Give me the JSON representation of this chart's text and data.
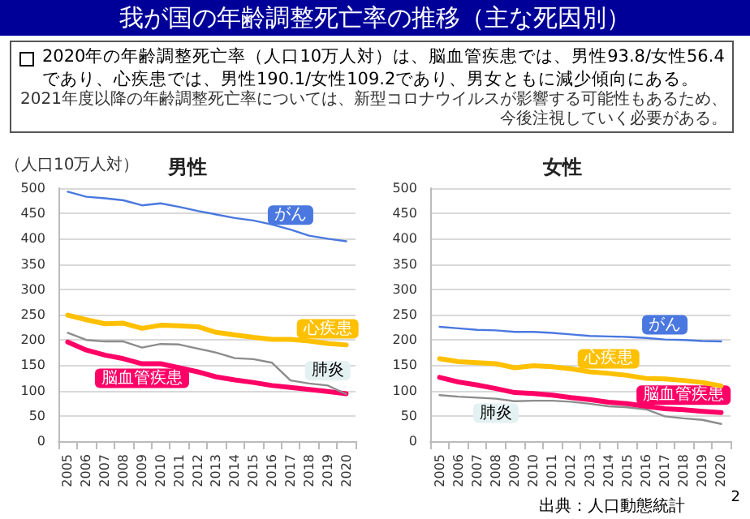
{
  "chart_data": [
    {
      "type": "line",
      "title": "男性",
      "ylabel": "（人口10万人対）",
      "categories": [
        "2005",
        "2006",
        "2007",
        "2008",
        "2009",
        "2010",
        "2011",
        "2012",
        "2013",
        "2014",
        "2015",
        "2016",
        "2017",
        "2018",
        "2019",
        "2020"
      ],
      "series": [
        {
          "name": "がん",
          "color": "#4a78e0",
          "values": [
            493,
            483,
            480,
            476,
            466,
            470,
            463,
            455,
            448,
            441,
            436,
            428,
            418,
            406,
            400,
            395
          ]
        },
        {
          "name": "心疾患",
          "color": "#ffc000",
          "values": [
            249,
            240,
            232,
            233,
            223,
            229,
            228,
            226,
            215,
            210,
            205,
            201,
            201,
            198,
            193,
            190.1
          ]
        },
        {
          "name": "肺炎",
          "color": "#8c8c8c",
          "values": [
            214,
            200,
            197,
            197,
            185,
            192,
            191,
            183,
            175,
            164,
            162,
            155,
            120,
            114,
            110,
            93
          ]
        },
        {
          "name": "脳血管疾患",
          "color": "#ff0066",
          "values": [
            196,
            180,
            170,
            163,
            153,
            153,
            145,
            137,
            127,
            121,
            116,
            110,
            106,
            102,
            98,
            93.8
          ]
        }
      ],
      "ylim": [
        0,
        500
      ],
      "yticks": [
        0,
        50,
        100,
        150,
        200,
        250,
        300,
        350,
        400,
        450,
        500
      ],
      "grid": "y",
      "marker": "none",
      "annotations": [
        "我が国の年齢調整死亡率の推移（主な死因別）",
        "2020年の年齢調整死亡率（人口10万人対）は、脳血管疾患では、男性93.8/女性56.4であり、心疾患では、男性190.1/女性109.2であり、男女ともに減少傾向にある。",
        "2021年度以降の年齢調整死亡率については、新型コロナウイルスが影響する可能性もあるため、今後注視していく必要がある。"
      ]
    },
    {
      "type": "line",
      "title": "女性",
      "categories": [
        "2005",
        "2006",
        "2007",
        "2008",
        "2009",
        "2010",
        "2011",
        "2012",
        "2013",
        "2014",
        "2015",
        "2016",
        "2017",
        "2018",
        "2019",
        "2020"
      ],
      "series": [
        {
          "name": "がん",
          "color": "#4a78e0",
          "values": [
            226,
            223,
            220,
            219,
            216,
            216,
            214,
            211,
            208,
            207,
            206,
            204,
            201,
            200,
            198,
            197
          ]
        },
        {
          "name": "心疾患",
          "color": "#ffc000",
          "values": [
            163,
            157,
            155,
            153,
            145,
            149,
            147,
            143,
            137,
            134,
            130,
            124,
            123,
            120,
            116,
            109.2
          ]
        },
        {
          "name": "脳血管疾患",
          "color": "#ff0066",
          "values": [
            126,
            117,
            111,
            104,
            96,
            94,
            91,
            86,
            82,
            77,
            74,
            69,
            64,
            62,
            59,
            56.4
          ]
        },
        {
          "name": "肺炎",
          "color": "#8c8c8c",
          "values": [
            91,
            88,
            86,
            84,
            79,
            80,
            80,
            78,
            74,
            69,
            67,
            63,
            49,
            45,
            42,
            34
          ]
        }
      ],
      "ylim": [
        0,
        500
      ],
      "yticks": [
        0,
        50,
        100,
        150,
        200,
        250,
        300,
        350,
        400,
        450,
        500
      ],
      "grid": "y",
      "marker": "none",
      "annotations": [
        "出典：人口動態統計",
        "2"
      ]
    }
  ]
}
